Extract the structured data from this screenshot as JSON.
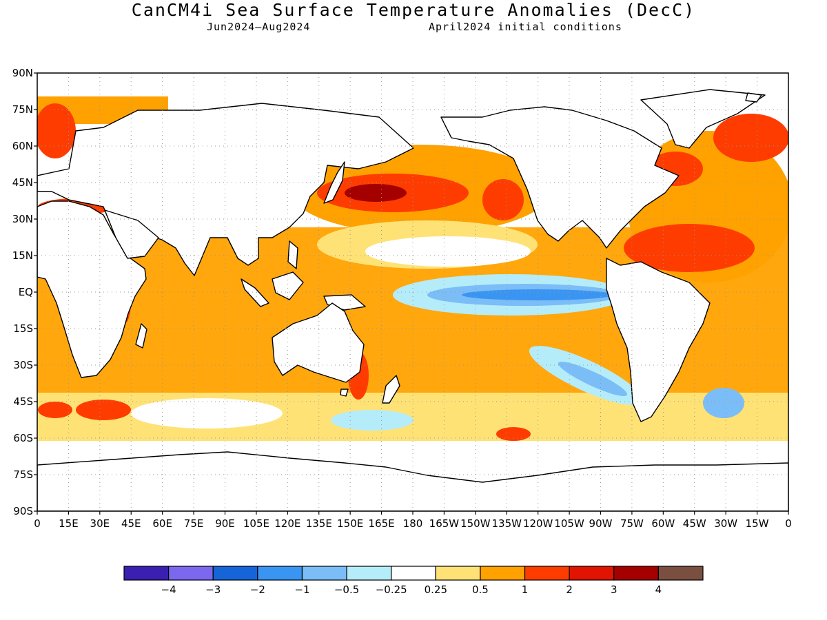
{
  "title": "CanCM4i Sea Surface Temperature Anomalies (DecC)",
  "period": "Jun2024—Aug2024",
  "init": "April2024 initial conditions",
  "lat_labels": [
    "90N",
    "75N",
    "60N",
    "45N",
    "30N",
    "15N",
    "EQ",
    "15S",
    "30S",
    "45S",
    "60S",
    "75S",
    "90S"
  ],
  "lon_labels": [
    "0",
    "15E",
    "30E",
    "45E",
    "60E",
    "75E",
    "90E",
    "105E",
    "120E",
    "135E",
    "150E",
    "165E",
    "180",
    "165W",
    "150W",
    "135W",
    "120W",
    "105W",
    "90W",
    "75W",
    "60W",
    "45W",
    "30W",
    "15W",
    "0"
  ],
  "colorbar": {
    "colors": [
      "#3a1fb0",
      "#7b68ee",
      "#1565d8",
      "#3a95f2",
      "#7bbdf7",
      "#b5ecfa",
      "#ffffff",
      "#ffe275",
      "#ffa200",
      "#ff3c00",
      "#e01400",
      "#a40000",
      "#7a4f40"
    ],
    "labels": [
      "−4",
      "−3",
      "−2",
      "−1",
      "−0.5",
      "−0.25",
      "0.25",
      "0.5",
      "1",
      "2",
      "3",
      "4"
    ]
  },
  "colors": {
    "land": "#ffffff",
    "coast": "#000000",
    "grid": "#999999"
  }
}
